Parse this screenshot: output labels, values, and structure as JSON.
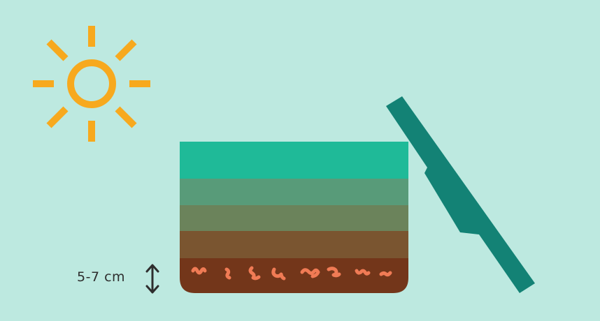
{
  "depth_label": "5-7 cm",
  "colors": {
    "background": "#bde9e0",
    "sun": "#f7a91e",
    "layer_top": "#1fba98",
    "layer_2": "#589b79",
    "layer_3": "#6b835b",
    "layer_4": "#7a5530",
    "layer_bottom": "#73361a",
    "worm": "#f07b55",
    "lid": "#138275",
    "arrow": "#2e2e2e"
  },
  "icons": {
    "sun": "sun-icon",
    "arrow": "double-arrow-vertical-icon",
    "worm": "worm-icon"
  }
}
